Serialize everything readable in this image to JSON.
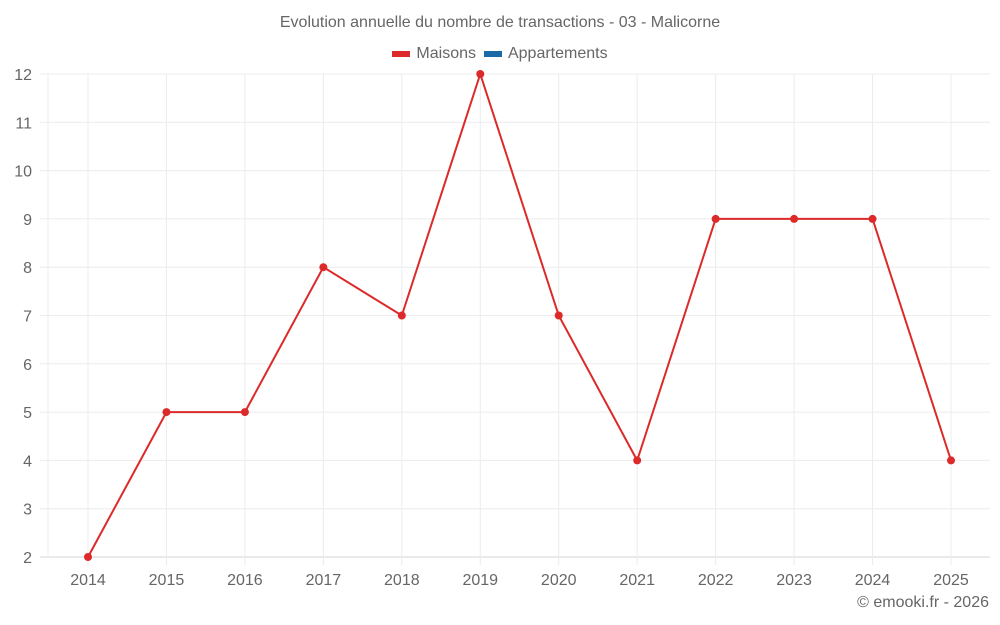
{
  "title": "Evolution annuelle du nombre de transactions - 03 - Malicorne",
  "legend": [
    {
      "label": "Maisons",
      "color": "#dc2a2a"
    },
    {
      "label": "Appartements",
      "color": "#1a6aa5"
    }
  ],
  "credit": "© emooki.fr - 2026",
  "chart_data": {
    "type": "line",
    "title": "Evolution annuelle du nombre de transactions - 03 - Malicorne",
    "xlabel": "",
    "ylabel": "",
    "categories": [
      "2014",
      "2015",
      "2016",
      "2017",
      "2018",
      "2019",
      "2020",
      "2021",
      "2022",
      "2023",
      "2024",
      "2025"
    ],
    "series": [
      {
        "name": "Maisons",
        "color": "#dc2a2a",
        "values": [
          2,
          5,
          5,
          8,
          7,
          12,
          7,
          4,
          9,
          9,
          9,
          4
        ]
      },
      {
        "name": "Appartements",
        "color": "#1a6aa5",
        "values": []
      }
    ],
    "yticks": [
      2,
      3,
      4,
      5,
      6,
      7,
      8,
      9,
      10,
      11,
      12
    ],
    "ylim": [
      2,
      12
    ],
    "grid": true,
    "legend_position": "top"
  }
}
